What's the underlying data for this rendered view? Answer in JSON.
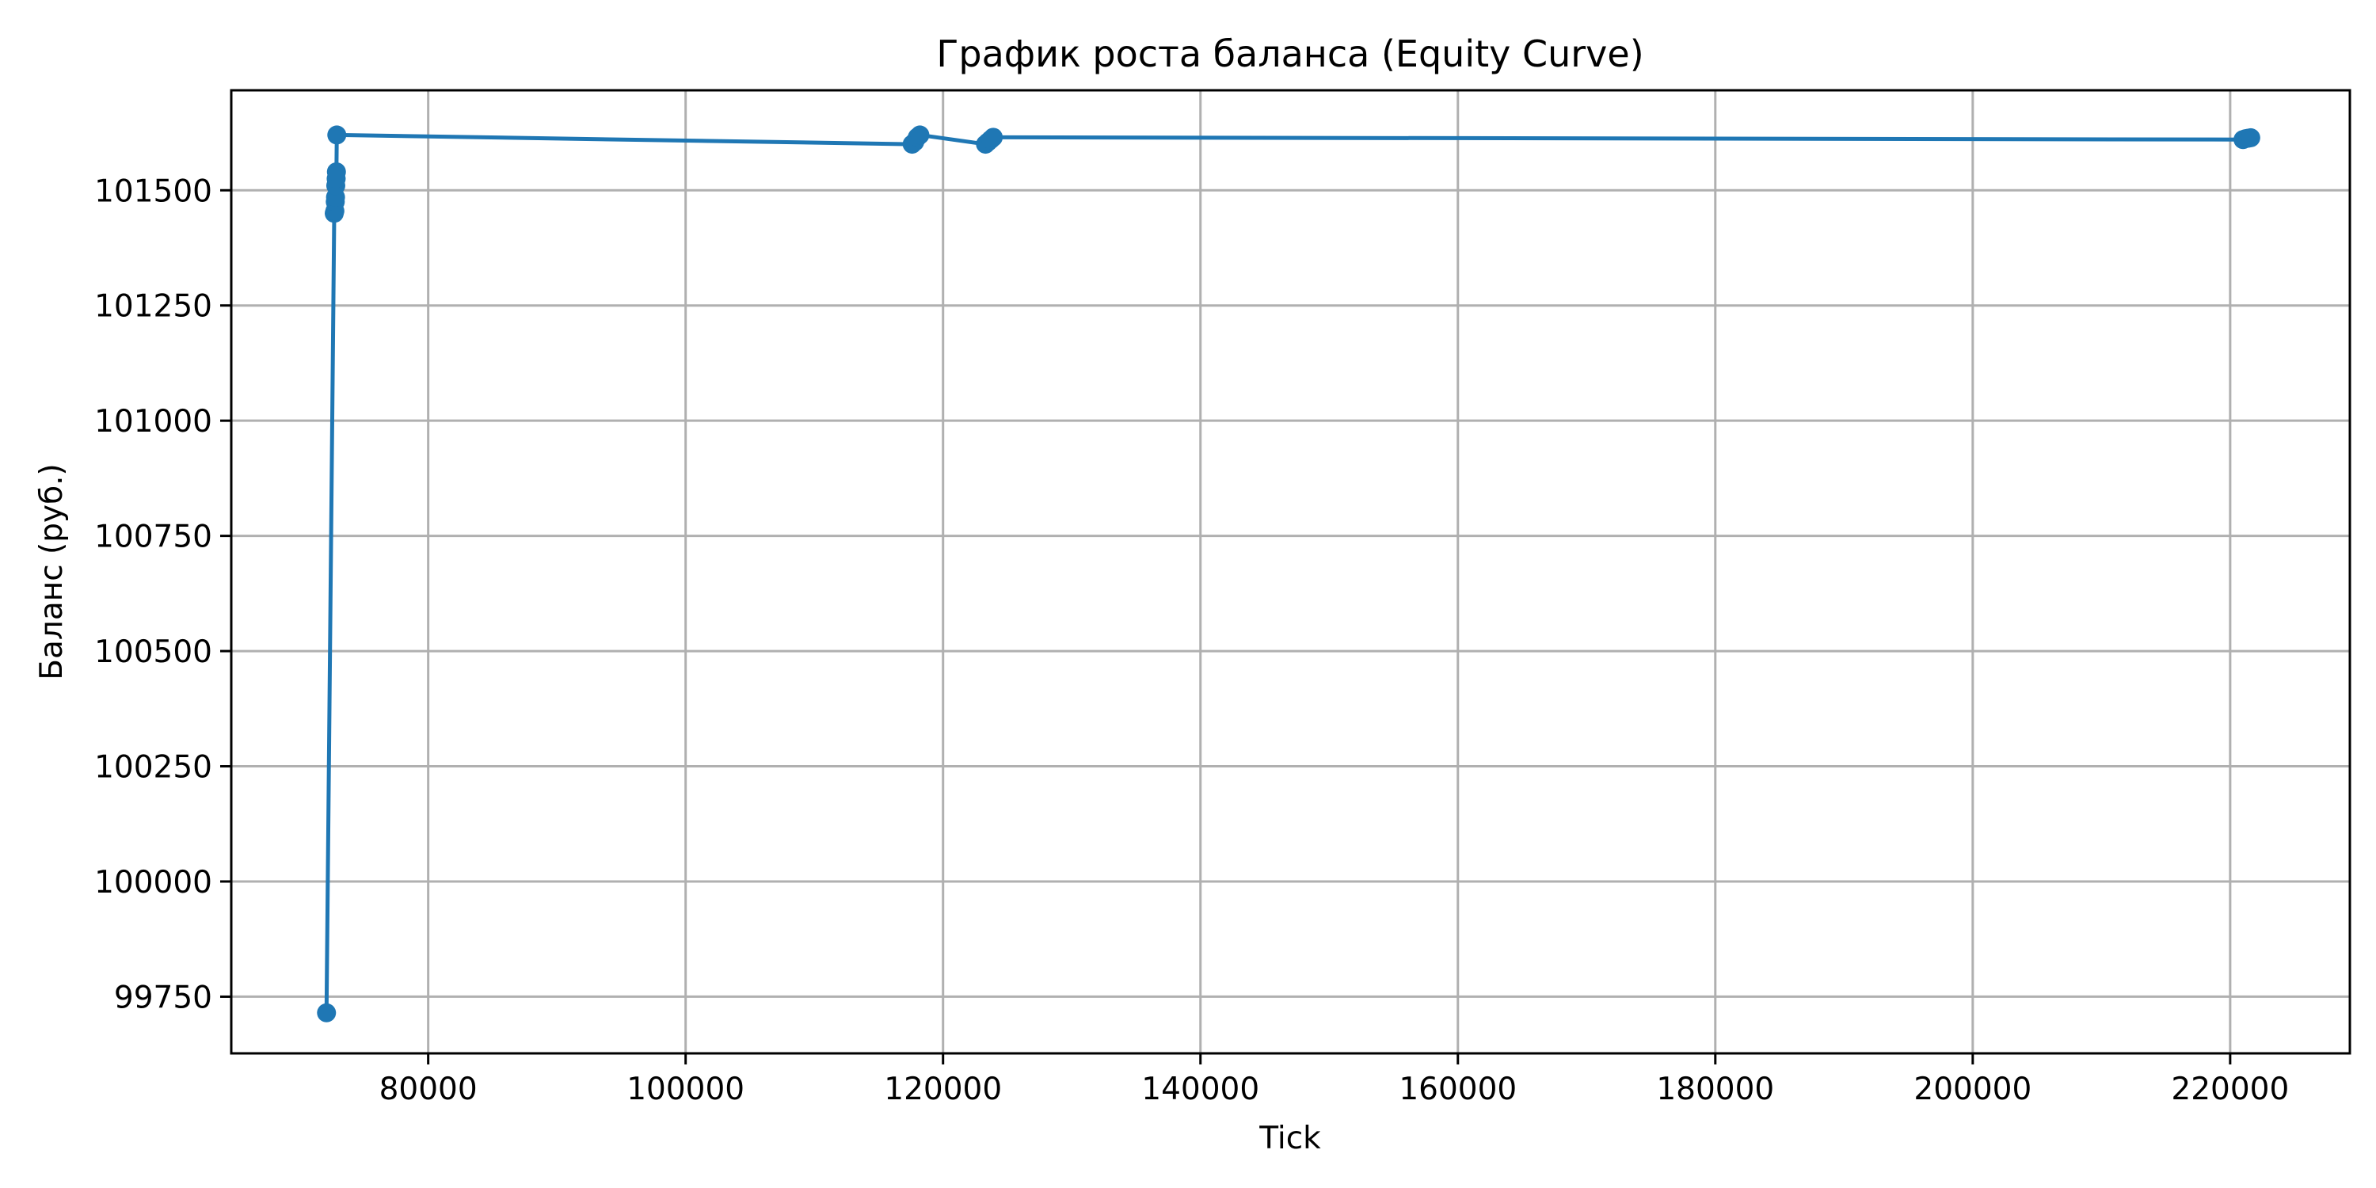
{
  "chart_data": {
    "type": "line",
    "title": "График роста баланса (Equity Curve)",
    "xlabel": "Tick",
    "ylabel": "Баланс (руб.)",
    "xlim": [
      64700,
      229300
    ],
    "ylim": [
      99627,
      101717
    ],
    "xticks": [
      80000,
      100000,
      120000,
      140000,
      160000,
      180000,
      200000,
      220000
    ],
    "yticks": [
      99750,
      100000,
      100250,
      100500,
      100750,
      101000,
      101250,
      101500
    ],
    "grid": true,
    "marker": "circle",
    "series": [
      {
        "color": "#1f77b4",
        "x": [
          72100,
          72700,
          72750,
          72780,
          72800,
          72820,
          72850,
          72870,
          72900,
          117600,
          117800,
          118000,
          118200,
          123300,
          123500,
          123700,
          123900,
          221000,
          221200,
          221400,
          221600
        ],
        "y": [
          99715,
          101450,
          101455,
          101475,
          101485,
          101510,
          101525,
          101540,
          101620,
          101600,
          101605,
          101615,
          101620,
          101600,
          101605,
          101610,
          101615,
          101610,
          101612,
          101613,
          101614
        ]
      }
    ]
  }
}
